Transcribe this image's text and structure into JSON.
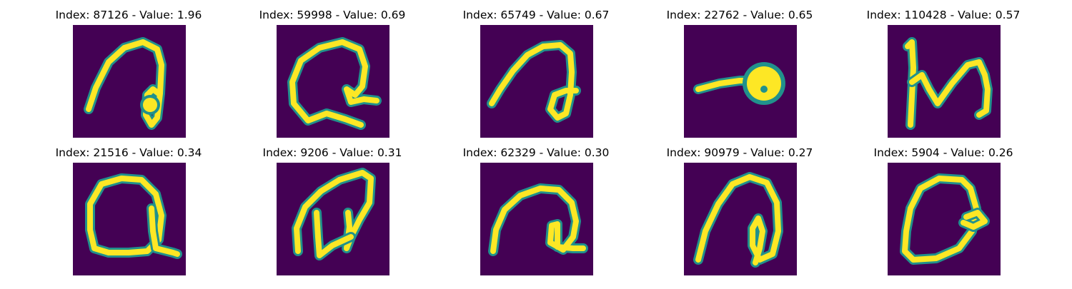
{
  "samples": [
    {
      "label": "Index: 87126 - Value: 1.96",
      "index": 87126,
      "value": 1.96
    },
    {
      "label": "Index: 59998 - Value: 0.69",
      "index": 59998,
      "value": 0.69
    },
    {
      "label": "Index: 65749 - Value: 0.67",
      "index": 65749,
      "value": 0.67
    },
    {
      "label": "Index: 22762 - Value: 0.65",
      "index": 22762,
      "value": 0.65
    },
    {
      "label": "Index: 110428 - Value: 0.57",
      "index": 110428,
      "value": 0.57
    },
    {
      "label": "Index: 21516 - Value: 0.34",
      "index": 21516,
      "value": 0.34
    },
    {
      "label": "Index: 9206 - Value: 0.31",
      "index": 9206,
      "value": 0.31
    },
    {
      "label": "Index: 62329 - Value: 0.30",
      "index": 62329,
      "value": 0.3
    },
    {
      "label": "Index: 90979 - Value: 0.27",
      "index": 90979,
      "value": 0.27
    },
    {
      "label": "Index: 5904 - Value: 0.26",
      "index": 5904,
      "value": 0.26
    }
  ],
  "colors": {
    "background": "#440154",
    "stroke_edge": "#21918c",
    "stroke_core": "#fde725"
  }
}
